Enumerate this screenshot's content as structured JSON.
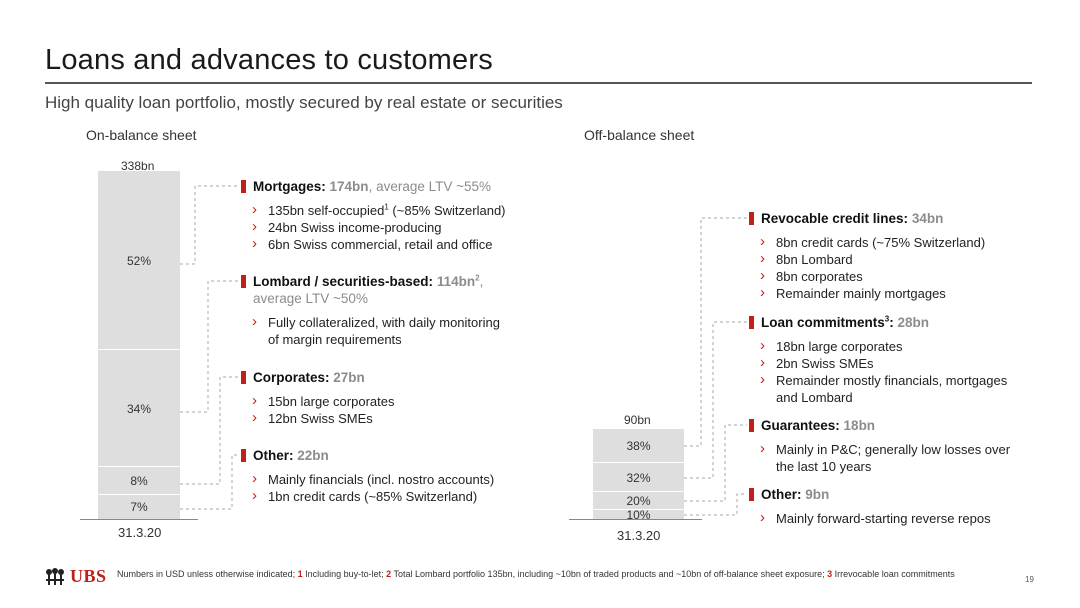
{
  "title": "Loans and advances to customers",
  "subtitle": "High quality loan portfolio, mostly secured by real estate or securities",
  "colors": {
    "accent": "#c0201a",
    "bar": "#dedede",
    "muted_value": "#8c8c8c"
  },
  "chart_data": [
    {
      "type": "bar",
      "title": "On-balance sheet",
      "categories": [
        "31.3.20"
      ],
      "total_label": "338bn",
      "series": [
        {
          "name": "Mortgages",
          "values": [
            52
          ],
          "label": "52%"
        },
        {
          "name": "Lombard / securities-based",
          "values": [
            34
          ],
          "label": "34%"
        },
        {
          "name": "Corporates",
          "values": [
            8
          ],
          "label": "8%"
        },
        {
          "name": "Other",
          "values": [
            7
          ],
          "label": "7%"
        }
      ]
    },
    {
      "type": "bar",
      "title": "Off-balance sheet",
      "categories": [
        "31.3.20"
      ],
      "total_label": "90bn",
      "series": [
        {
          "name": "Revocable credit lines",
          "values": [
            38
          ],
          "label": "38%"
        },
        {
          "name": "Loan commitments",
          "values": [
            32
          ],
          "label": "32%"
        },
        {
          "name": "Guarantees",
          "values": [
            20
          ],
          "label": "20%"
        },
        {
          "name": "Other",
          "values": [
            10
          ],
          "label": "10%"
        }
      ]
    }
  ],
  "on_balance": {
    "blocks": [
      {
        "label": "Mortgages:",
        "value": "174bn",
        "note": ", average LTV ~55%",
        "bullets": [
          "135bn self-occupied",
          "24bn Swiss income-producing",
          "6bn Swiss commercial, retail and office"
        ],
        "bullet0_sup": "1",
        "bullet0_rest": " (~85% Switzerland)"
      },
      {
        "label": "Lombard / securities-based:",
        "value": "114bn",
        "value_sup": "2",
        "note": ",",
        "note2": "average LTV ~50%",
        "bullets": [
          "Fully collateralized, with daily monitoring",
          "of margin requirements"
        ]
      },
      {
        "label": "Corporates:",
        "value": "27bn",
        "bullets": [
          "15bn large corporates",
          "12bn Swiss SMEs"
        ]
      },
      {
        "label": "Other:",
        "value": "22bn",
        "bullets": [
          "Mainly financials (incl. nostro accounts)",
          "1bn credit cards (~85% Switzerland)"
        ]
      }
    ]
  },
  "off_balance": {
    "blocks": [
      {
        "label": "Revocable credit lines:",
        "value": "34bn",
        "bullets": [
          "8bn credit cards (~75% Switzerland)",
          "8bn Lombard",
          "8bn corporates",
          "Remainder mainly mortgages"
        ]
      },
      {
        "label": "Loan commitments",
        "label_sup": "3",
        "label_colon": ":",
        "value": "28bn",
        "bullets": [
          "18bn large corporates",
          "2bn Swiss SMEs",
          "Remainder mostly financials, mortgages",
          "and Lombard"
        ]
      },
      {
        "label": "Guarantees:",
        "value": "18bn",
        "bullets": [
          "Mainly in P&C; generally low losses over",
          "the last 10 years"
        ]
      },
      {
        "label": "Other:",
        "value": "9bn",
        "bullets": [
          "Mainly forward-starting reverse repos"
        ]
      }
    ]
  },
  "footer": {
    "brand": "UBS",
    "note_parts": [
      {
        "t": "Numbers in USD unless otherwise indicated; ",
        "n": false
      },
      {
        "t": "1",
        "n": true
      },
      {
        "t": " Including buy-to-let; ",
        "n": false
      },
      {
        "t": "2",
        "n": true
      },
      {
        "t": " Total Lombard portfolio 135bn, including ~10bn of traded products and ~10bn of off-balance sheet exposure; ",
        "n": false
      },
      {
        "t": "3",
        "n": true
      },
      {
        "t": " Irrevocable loan commitments",
        "n": false
      }
    ],
    "page": "19"
  }
}
